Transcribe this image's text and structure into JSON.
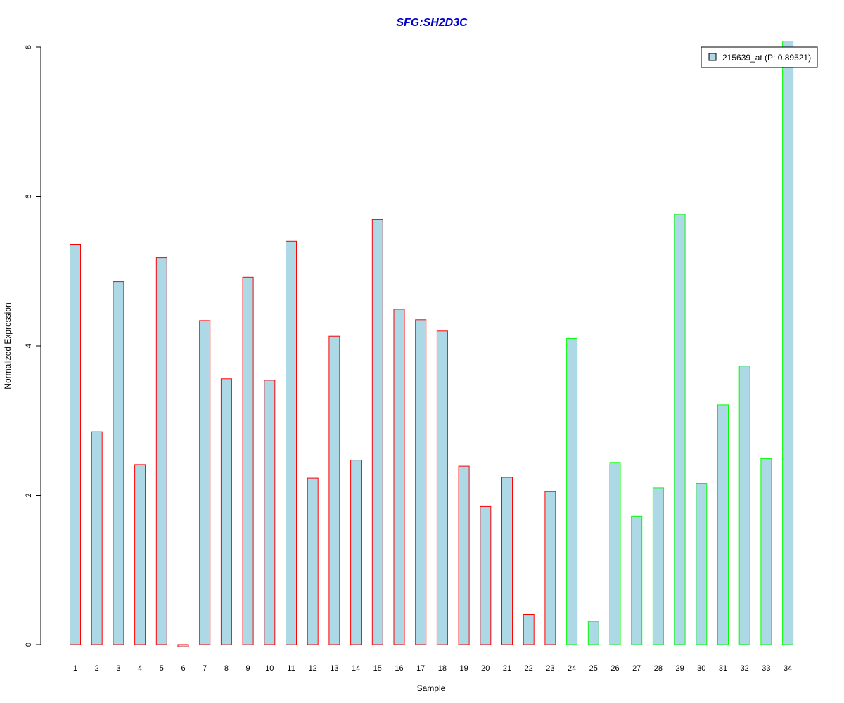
{
  "chart_data": {
    "type": "bar",
    "title": "SFG:SH2D3C",
    "title_color": "#0000CC",
    "xlabel": "Sample",
    "ylabel": "Normalized Expression",
    "ylim": [
      0,
      8
    ],
    "yticks": [
      0,
      2,
      4,
      6,
      8
    ],
    "grid": false,
    "legend_position": "top-right",
    "categories": [
      "1",
      "2",
      "3",
      "4",
      "5",
      "6",
      "7",
      "8",
      "9",
      "10",
      "11",
      "12",
      "13",
      "14",
      "15",
      "16",
      "17",
      "18",
      "19",
      "20",
      "21",
      "22",
      "23",
      "24",
      "25",
      "26",
      "27",
      "28",
      "29",
      "30",
      "31",
      "32",
      "33",
      "34"
    ],
    "series": [
      {
        "name": "215639_at (P: 0.89521)",
        "fill": "#ADD8E6",
        "values": [
          5.36,
          2.85,
          4.86,
          2.41,
          5.18,
          -0.03,
          4.34,
          3.56,
          4.92,
          3.54,
          5.4,
          2.23,
          4.13,
          2.47,
          5.69,
          4.49,
          4.35,
          4.2,
          2.39,
          1.85,
          2.24,
          0.4,
          2.05,
          4.1,
          0.31,
          2.44,
          1.72,
          2.1,
          5.76,
          2.16,
          3.21,
          3.73,
          2.49,
          8.08
        ]
      }
    ],
    "border_colors": [
      "#FF0000",
      "#FF0000",
      "#FF0000",
      "#FF0000",
      "#FF0000",
      "#FF0000",
      "#FF0000",
      "#FF0000",
      "#FF0000",
      "#FF0000",
      "#FF0000",
      "#FF0000",
      "#FF0000",
      "#FF0000",
      "#FF0000",
      "#FF0000",
      "#FF0000",
      "#FF0000",
      "#FF0000",
      "#FF0000",
      "#FF0000",
      "#FF0000",
      "#FF0000",
      "#00FF00",
      "#00FF00",
      "#00FF00",
      "#00FF00",
      "#00FF00",
      "#00FF00",
      "#00FF00",
      "#00FF00",
      "#00FF00",
      "#00FF00",
      "#00FF00"
    ]
  }
}
